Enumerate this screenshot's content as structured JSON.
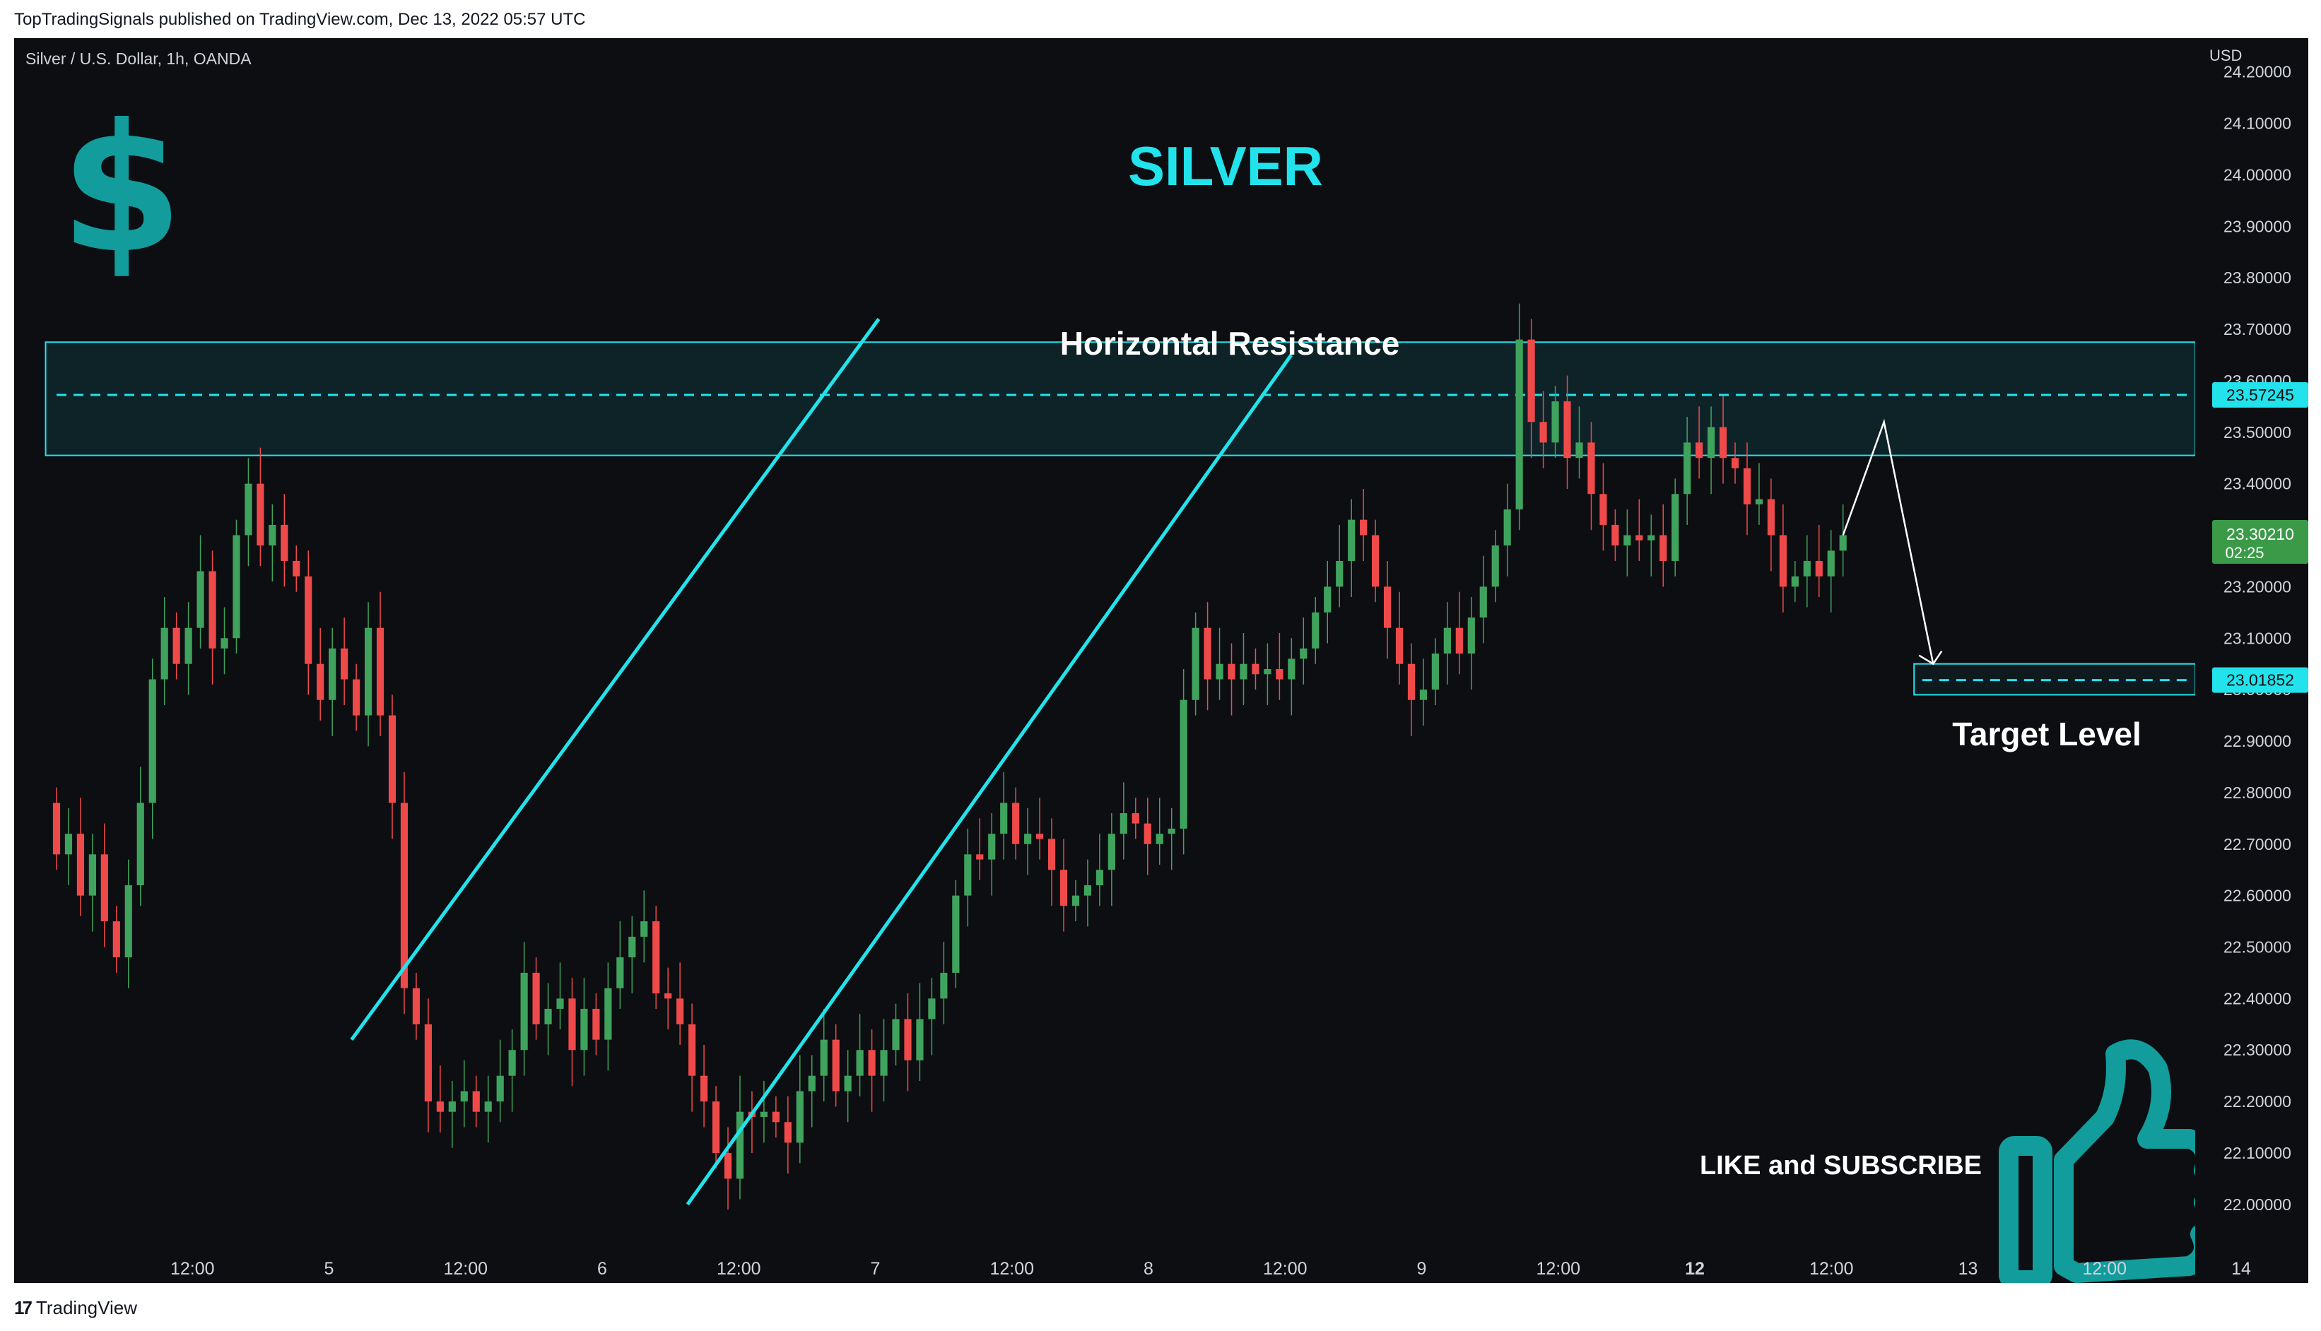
{
  "header": {
    "published": "TopTradingSignals published on TradingView.com, Dec 13, 2022 05:57 UTC"
  },
  "symbol": {
    "label": "Silver / U.S. Dollar, 1h, OANDA"
  },
  "price_axis": {
    "currency": "USD"
  },
  "current_price": {
    "value": "23.30210",
    "countdown": "02:25"
  },
  "footer": {
    "brand": "TradingView"
  },
  "colors": {
    "background": "#0d0e12",
    "up": "#3fa35d",
    "down": "#ef4a4a",
    "cyan": "#22e3ec",
    "teal_icon": "#129c9c",
    "price_tag": "#3a9a48"
  },
  "icons": {
    "dollar": "dollar-sign-icon",
    "thumb": "thumbs-up-icon",
    "logo": "tradingview-logo-icon"
  },
  "chart_data": {
    "type": "candlestick",
    "title": "SILVER",
    "y_unit": "USD",
    "ylim": [
      21.96,
      24.26
    ],
    "y_ticks": [
      "24.20000",
      "24.10000",
      "24.00000",
      "23.90000",
      "23.80000",
      "23.70000",
      "23.60000",
      "23.50000",
      "23.40000",
      "23.30000",
      "23.20000",
      "23.10000",
      "23.00000",
      "22.90000",
      "22.80000",
      "22.70000",
      "22.60000",
      "22.50000",
      "22.40000",
      "22.30000",
      "22.20000",
      "22.10000",
      "22.00000"
    ],
    "x_labels": [
      "12:00",
      "5",
      "12:00",
      "6",
      "12:00",
      "7",
      "12:00",
      "8",
      "12:00",
      "9",
      "12:00",
      "12",
      "12:00",
      "13",
      "12:00",
      "14"
    ],
    "x_label_positions": [
      0.5,
      1,
      1.5,
      2,
      2.5,
      3,
      3.5,
      4,
      4.5,
      5,
      5.5,
      6,
      6.5,
      7,
      7.5,
      8
    ],
    "candles_x_range": [
      0.0,
      6.54
    ],
    "candles": [
      [
        22.78,
        22.68
      ],
      [
        22.68,
        22.72
      ],
      [
        22.72,
        22.6
      ],
      [
        22.6,
        22.68
      ],
      [
        22.68,
        22.55
      ],
      [
        22.55,
        22.48
      ],
      [
        22.48,
        22.62
      ],
      [
        22.62,
        22.78
      ],
      [
        22.78,
        23.02
      ],
      [
        23.02,
        23.12
      ],
      [
        23.12,
        23.05
      ],
      [
        23.05,
        23.12
      ],
      [
        23.12,
        23.23
      ],
      [
        23.23,
        23.08
      ],
      [
        23.08,
        23.1
      ],
      [
        23.1,
        23.3
      ],
      [
        23.3,
        23.4
      ],
      [
        23.4,
        23.28
      ],
      [
        23.28,
        23.32
      ],
      [
        23.32,
        23.25
      ],
      [
        23.25,
        23.22
      ],
      [
        23.22,
        23.05
      ],
      [
        23.05,
        22.98
      ],
      [
        22.98,
        23.08
      ],
      [
        23.08,
        23.02
      ],
      [
        23.02,
        22.95
      ],
      [
        22.95,
        23.12
      ],
      [
        23.12,
        22.95
      ],
      [
        22.95,
        22.78
      ],
      [
        22.78,
        22.42
      ],
      [
        22.42,
        22.35
      ],
      [
        22.35,
        22.2
      ],
      [
        22.2,
        22.18
      ],
      [
        22.18,
        22.2
      ],
      [
        22.2,
        22.22
      ],
      [
        22.22,
        22.18
      ],
      [
        22.18,
        22.2
      ],
      [
        22.2,
        22.25
      ],
      [
        22.25,
        22.3
      ],
      [
        22.3,
        22.45
      ],
      [
        22.45,
        22.35
      ],
      [
        22.35,
        22.38
      ],
      [
        22.38,
        22.4
      ],
      [
        22.4,
        22.3
      ],
      [
        22.3,
        22.38
      ],
      [
        22.38,
        22.32
      ],
      [
        22.32,
        22.42
      ],
      [
        22.42,
        22.48
      ],
      [
        22.48,
        22.52
      ],
      [
        22.52,
        22.55
      ],
      [
        22.55,
        22.41
      ],
      [
        22.41,
        22.4
      ],
      [
        22.4,
        22.35
      ],
      [
        22.35,
        22.25
      ],
      [
        22.25,
        22.2
      ],
      [
        22.2,
        22.1
      ],
      [
        22.1,
        22.05
      ],
      [
        22.05,
        22.18
      ],
      [
        22.18,
        22.17
      ],
      [
        22.17,
        22.18
      ],
      [
        22.18,
        22.16
      ],
      [
        22.16,
        22.12
      ],
      [
        22.12,
        22.22
      ],
      [
        22.22,
        22.25
      ],
      [
        22.25,
        22.32
      ],
      [
        22.32,
        22.22
      ],
      [
        22.22,
        22.25
      ],
      [
        22.25,
        22.3
      ],
      [
        22.3,
        22.25
      ],
      [
        22.25,
        22.3
      ],
      [
        22.3,
        22.36
      ],
      [
        22.36,
        22.28
      ],
      [
        22.28,
        22.36
      ],
      [
        22.36,
        22.4
      ],
      [
        22.4,
        22.45
      ],
      [
        22.45,
        22.6
      ],
      [
        22.6,
        22.68
      ],
      [
        22.68,
        22.67
      ],
      [
        22.67,
        22.72
      ],
      [
        22.72,
        22.78
      ],
      [
        22.78,
        22.7
      ],
      [
        22.7,
        22.72
      ],
      [
        22.72,
        22.71
      ],
      [
        22.71,
        22.65
      ],
      [
        22.65,
        22.58
      ],
      [
        22.58,
        22.6
      ],
      [
        22.6,
        22.62
      ],
      [
        22.62,
        22.65
      ],
      [
        22.65,
        22.72
      ],
      [
        22.72,
        22.76
      ],
      [
        22.76,
        22.74
      ],
      [
        22.74,
        22.7
      ],
      [
        22.7,
        22.72
      ],
      [
        22.72,
        22.73
      ],
      [
        22.73,
        22.98
      ],
      [
        22.98,
        23.12
      ],
      [
        23.12,
        23.02
      ],
      [
        23.02,
        23.05
      ],
      [
        23.05,
        23.02
      ],
      [
        23.02,
        23.05
      ],
      [
        23.05,
        23.03
      ],
      [
        23.03,
        23.04
      ],
      [
        23.04,
        23.02
      ],
      [
        23.02,
        23.06
      ],
      [
        23.06,
        23.08
      ],
      [
        23.08,
        23.15
      ],
      [
        23.15,
        23.2
      ],
      [
        23.2,
        23.25
      ],
      [
        23.25,
        23.33
      ],
      [
        23.33,
        23.3
      ],
      [
        23.3,
        23.2
      ],
      [
        23.2,
        23.12
      ],
      [
        23.12,
        23.05
      ],
      [
        23.05,
        22.98
      ],
      [
        22.98,
        23.0
      ],
      [
        23.0,
        23.07
      ],
      [
        23.07,
        23.12
      ],
      [
        23.12,
        23.07
      ],
      [
        23.07,
        23.14
      ],
      [
        23.14,
        23.2
      ],
      [
        23.2,
        23.28
      ],
      [
        23.28,
        23.35
      ],
      [
        23.35,
        23.68
      ],
      [
        23.68,
        23.52
      ],
      [
        23.52,
        23.48
      ],
      [
        23.48,
        23.56
      ],
      [
        23.56,
        23.45
      ],
      [
        23.45,
        23.48
      ],
      [
        23.48,
        23.38
      ],
      [
        23.38,
        23.32
      ],
      [
        23.32,
        23.28
      ],
      [
        23.28,
        23.3
      ],
      [
        23.3,
        23.29
      ],
      [
        23.29,
        23.3
      ],
      [
        23.3,
        23.25
      ],
      [
        23.25,
        23.38
      ],
      [
        23.38,
        23.48
      ],
      [
        23.48,
        23.45
      ],
      [
        23.45,
        23.51
      ],
      [
        23.51,
        23.45
      ],
      [
        23.45,
        23.43
      ],
      [
        23.43,
        23.36
      ],
      [
        23.36,
        23.37
      ],
      [
        23.37,
        23.3
      ],
      [
        23.3,
        23.2
      ],
      [
        23.2,
        23.22
      ],
      [
        23.22,
        23.25
      ],
      [
        23.25,
        23.22
      ],
      [
        23.22,
        23.27
      ],
      [
        23.27,
        23.3
      ]
    ],
    "annotations": {
      "horizontal_resistance_label": "Horizontal Resistance",
      "resistance_zone": [
        23.455,
        23.675
      ],
      "resistance_level": "23.57245",
      "target_label": "Target Level",
      "target_level": "23.01852",
      "target_zone": [
        22.99,
        23.05
      ],
      "cta": "LIKE and SUBSCRIBE",
      "upper_channel_line": [
        [
          1.08,
          22.32
        ],
        [
          3.01,
          23.72
        ]
      ],
      "lower_channel_line": [
        [
          2.31,
          22.0
        ],
        [
          4.52,
          23.65
        ]
      ],
      "projection_path": [
        [
          6.54,
          23.3
        ],
        [
          6.69,
          23.52
        ],
        [
          6.87,
          23.05
        ]
      ]
    }
  }
}
